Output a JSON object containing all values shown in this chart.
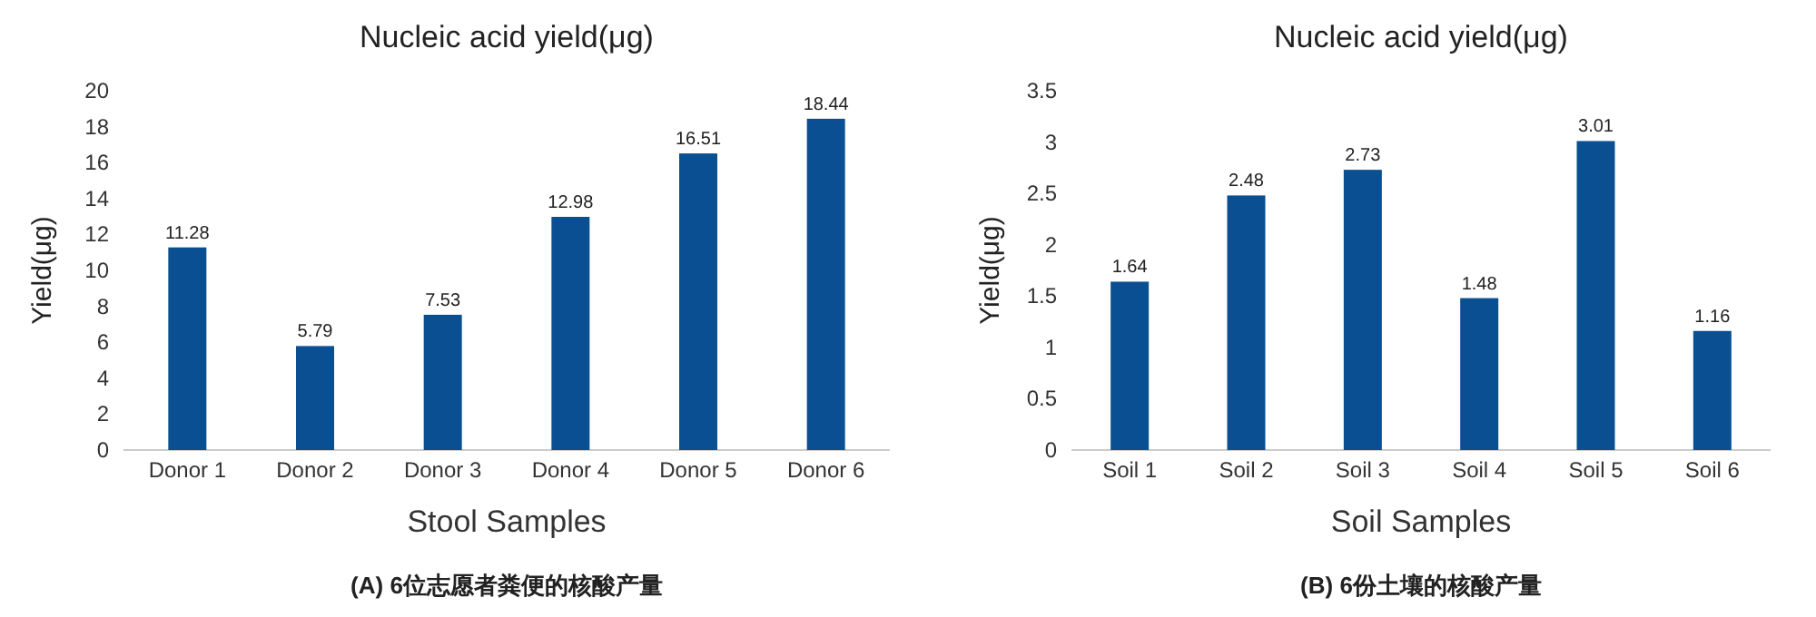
{
  "chart_data": [
    {
      "type": "bar",
      "title": "Nucleic acid yield(μg)",
      "xlabel": "Stool Samples",
      "ylabel": "Yield(μg)",
      "categories": [
        "Donor 1",
        "Donor 2",
        "Donor 3",
        "Donor 4",
        "Donor 5",
        "Donor 6"
      ],
      "values": [
        11.28,
        5.79,
        7.53,
        12.98,
        16.51,
        18.44
      ],
      "color": "#0b4f93",
      "ylim": [
        0,
        20
      ],
      "yticks": [
        0,
        2,
        4,
        6,
        8,
        10,
        12,
        14,
        16,
        18,
        20
      ],
      "data_labels": true,
      "annotations": [
        "(A) 6位志愿者粪便的核酸产量"
      ]
    },
    {
      "type": "bar",
      "title": "Nucleic acid yield(μg)",
      "xlabel": "Soil Samples",
      "ylabel": "Yield(μg)",
      "categories": [
        "Soil 1",
        "Soil 2",
        "Soil 3",
        "Soil 4",
        "Soil 5",
        "Soil 6"
      ],
      "values": [
        1.64,
        2.48,
        2.73,
        1.48,
        3.01,
        1.16
      ],
      "color": "#0b4f93",
      "ylim": [
        0,
        3.5
      ],
      "yticks": [
        0,
        0.5,
        1,
        1.5,
        2,
        2.5,
        3,
        3.5
      ],
      "data_labels": true,
      "annotations": [
        "(B) 6份土壤的核酸产量"
      ]
    }
  ]
}
